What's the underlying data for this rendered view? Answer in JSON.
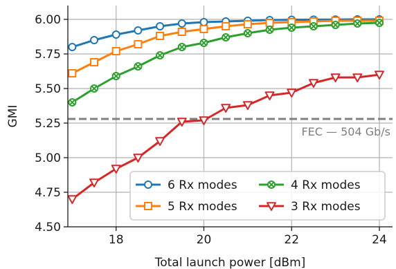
{
  "chart_data": {
    "type": "line",
    "xlabel": "Total launch power [dBm]",
    "ylabel": "GMI",
    "xlim": [
      16.9,
      24.3
    ],
    "ylim": [
      4.5,
      6.1
    ],
    "xticks": [
      18,
      20,
      22,
      24
    ],
    "yticks": [
      4.5,
      4.75,
      5.0,
      5.25,
      5.5,
      5.75,
      6.0
    ],
    "xtick_labels": [
      "18",
      "20",
      "22",
      "24"
    ],
    "ytick_labels": [
      "4.50",
      "4.75",
      "5.00",
      "5.25",
      "5.50",
      "5.75",
      "6.00"
    ],
    "grid": true,
    "legend_position": "lower-right",
    "x": [
      17,
      17.5,
      18,
      18.5,
      19,
      19.5,
      20,
      20.5,
      21,
      21.5,
      22,
      22.5,
      23,
      23.5,
      24
    ],
    "series": [
      {
        "name": "6 Rx modes",
        "color": "#1f77b4",
        "marker": "circle",
        "values": [
          5.8,
          5.85,
          5.89,
          5.92,
          5.95,
          5.97,
          5.98,
          5.985,
          5.99,
          5.995,
          5.997,
          5.998,
          5.999,
          6.0,
          6.0
        ]
      },
      {
        "name": "5 Rx modes",
        "color": "#ff7f0e",
        "marker": "square",
        "values": [
          5.61,
          5.69,
          5.77,
          5.82,
          5.88,
          5.91,
          5.93,
          5.95,
          5.965,
          5.975,
          5.98,
          5.985,
          5.99,
          5.99,
          5.99
        ]
      },
      {
        "name": "4 Rx modes",
        "color": "#2ca02c",
        "marker": "x-circle",
        "values": [
          5.4,
          5.5,
          5.59,
          5.66,
          5.74,
          5.8,
          5.83,
          5.87,
          5.9,
          5.925,
          5.94,
          5.95,
          5.96,
          5.97,
          5.975
        ]
      },
      {
        "name": "3 Rx modes",
        "color": "#d62728",
        "marker": "triangle-down",
        "values": [
          4.7,
          4.82,
          4.92,
          5.0,
          5.12,
          5.26,
          5.27,
          5.36,
          5.38,
          5.45,
          5.47,
          5.54,
          5.58,
          5.58,
          5.6
        ]
      }
    ],
    "threshold": {
      "label": "FEC — 504 Gb/s",
      "y": 5.28,
      "color": "#808080"
    }
  }
}
